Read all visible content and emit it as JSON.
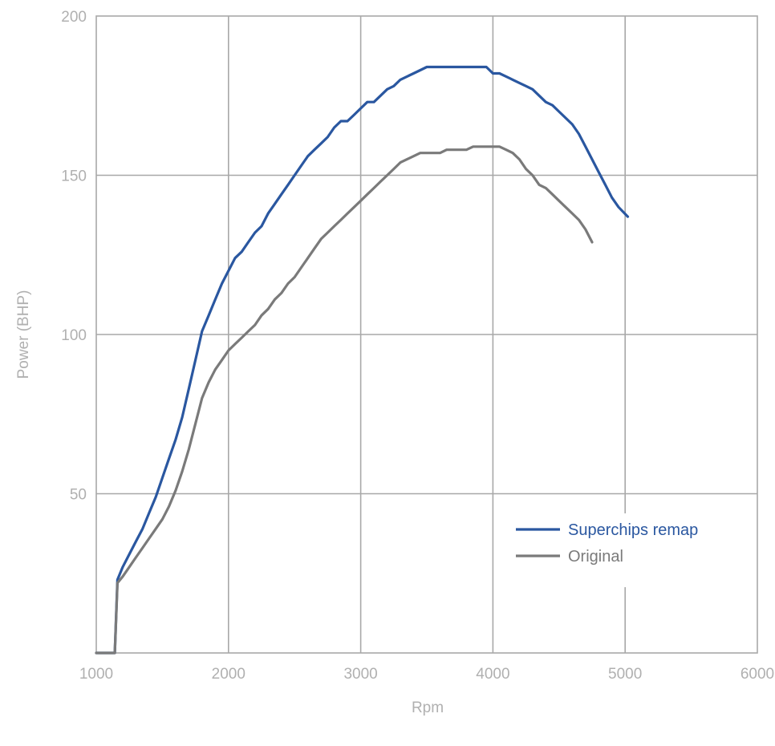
{
  "chart_data": {
    "type": "line",
    "title": "",
    "xlabel": "Rpm",
    "ylabel": "Power (BHP)",
    "xlim": [
      1000,
      6000
    ],
    "ylim": [
      0,
      200
    ],
    "x_ticks": [
      1000,
      2000,
      3000,
      4000,
      5000,
      6000
    ],
    "y_ticks": [
      50,
      100,
      150,
      200
    ],
    "grid": true,
    "legend_position": "bottom-right",
    "series": [
      {
        "name": "Superchips remap",
        "color": "#2a57a0",
        "points": [
          [
            1000,
            0
          ],
          [
            1140,
            0
          ],
          [
            1160,
            23
          ],
          [
            1200,
            27
          ],
          [
            1250,
            31
          ],
          [
            1300,
            35
          ],
          [
            1350,
            39
          ],
          [
            1400,
            44
          ],
          [
            1450,
            49
          ],
          [
            1500,
            55
          ],
          [
            1550,
            61
          ],
          [
            1600,
            67
          ],
          [
            1650,
            74
          ],
          [
            1700,
            83
          ],
          [
            1750,
            92
          ],
          [
            1800,
            101
          ],
          [
            1850,
            106
          ],
          [
            1900,
            111
          ],
          [
            1950,
            116
          ],
          [
            2000,
            120
          ],
          [
            2050,
            124
          ],
          [
            2100,
            126
          ],
          [
            2150,
            129
          ],
          [
            2200,
            132
          ],
          [
            2250,
            134
          ],
          [
            2300,
            138
          ],
          [
            2350,
            141
          ],
          [
            2400,
            144
          ],
          [
            2450,
            147
          ],
          [
            2500,
            150
          ],
          [
            2550,
            153
          ],
          [
            2600,
            156
          ],
          [
            2650,
            158
          ],
          [
            2700,
            160
          ],
          [
            2750,
            162
          ],
          [
            2800,
            165
          ],
          [
            2850,
            167
          ],
          [
            2900,
            167
          ],
          [
            2950,
            169
          ],
          [
            3000,
            171
          ],
          [
            3050,
            173
          ],
          [
            3100,
            173
          ],
          [
            3150,
            175
          ],
          [
            3200,
            177
          ],
          [
            3250,
            178
          ],
          [
            3300,
            180
          ],
          [
            3350,
            181
          ],
          [
            3400,
            182
          ],
          [
            3450,
            183
          ],
          [
            3500,
            184
          ],
          [
            3550,
            184
          ],
          [
            3600,
            184
          ],
          [
            3650,
            184
          ],
          [
            3700,
            184
          ],
          [
            3750,
            184
          ],
          [
            3800,
            184
          ],
          [
            3850,
            184
          ],
          [
            3900,
            184
          ],
          [
            3950,
            184
          ],
          [
            4000,
            182
          ],
          [
            4050,
            182
          ],
          [
            4100,
            181
          ],
          [
            4150,
            180
          ],
          [
            4200,
            179
          ],
          [
            4250,
            178
          ],
          [
            4300,
            177
          ],
          [
            4350,
            175
          ],
          [
            4400,
            173
          ],
          [
            4450,
            172
          ],
          [
            4500,
            170
          ],
          [
            4550,
            168
          ],
          [
            4600,
            166
          ],
          [
            4650,
            163
          ],
          [
            4700,
            159
          ],
          [
            4750,
            155
          ],
          [
            4800,
            151
          ],
          [
            4850,
            147
          ],
          [
            4900,
            143
          ],
          [
            4950,
            140
          ],
          [
            5020,
            137
          ]
        ]
      },
      {
        "name": "Original",
        "color": "#7a7a7a",
        "points": [
          [
            1000,
            0
          ],
          [
            1140,
            0
          ],
          [
            1160,
            22
          ],
          [
            1200,
            24
          ],
          [
            1250,
            27
          ],
          [
            1300,
            30
          ],
          [
            1350,
            33
          ],
          [
            1400,
            36
          ],
          [
            1450,
            39
          ],
          [
            1500,
            42
          ],
          [
            1550,
            46
          ],
          [
            1600,
            51
          ],
          [
            1650,
            57
          ],
          [
            1700,
            64
          ],
          [
            1750,
            72
          ],
          [
            1800,
            80
          ],
          [
            1850,
            85
          ],
          [
            1900,
            89
          ],
          [
            1950,
            92
          ],
          [
            2000,
            95
          ],
          [
            2050,
            97
          ],
          [
            2100,
            99
          ],
          [
            2150,
            101
          ],
          [
            2200,
            103
          ],
          [
            2250,
            106
          ],
          [
            2300,
            108
          ],
          [
            2350,
            111
          ],
          [
            2400,
            113
          ],
          [
            2450,
            116
          ],
          [
            2500,
            118
          ],
          [
            2550,
            121
          ],
          [
            2600,
            124
          ],
          [
            2650,
            127
          ],
          [
            2700,
            130
          ],
          [
            2750,
            132
          ],
          [
            2800,
            134
          ],
          [
            2850,
            136
          ],
          [
            2900,
            138
          ],
          [
            2950,
            140
          ],
          [
            3000,
            142
          ],
          [
            3050,
            144
          ],
          [
            3100,
            146
          ],
          [
            3150,
            148
          ],
          [
            3200,
            150
          ],
          [
            3250,
            152
          ],
          [
            3300,
            154
          ],
          [
            3350,
            155
          ],
          [
            3400,
            156
          ],
          [
            3450,
            157
          ],
          [
            3500,
            157
          ],
          [
            3550,
            157
          ],
          [
            3600,
            157
          ],
          [
            3650,
            158
          ],
          [
            3700,
            158
          ],
          [
            3750,
            158
          ],
          [
            3800,
            158
          ],
          [
            3850,
            159
          ],
          [
            3900,
            159
          ],
          [
            3950,
            159
          ],
          [
            4000,
            159
          ],
          [
            4050,
            159
          ],
          [
            4100,
            158
          ],
          [
            4150,
            157
          ],
          [
            4200,
            155
          ],
          [
            4250,
            152
          ],
          [
            4300,
            150
          ],
          [
            4350,
            147
          ],
          [
            4400,
            146
          ],
          [
            4450,
            144
          ],
          [
            4500,
            142
          ],
          [
            4550,
            140
          ],
          [
            4600,
            138
          ],
          [
            4650,
            136
          ],
          [
            4700,
            133
          ],
          [
            4750,
            129
          ]
        ]
      }
    ]
  }
}
